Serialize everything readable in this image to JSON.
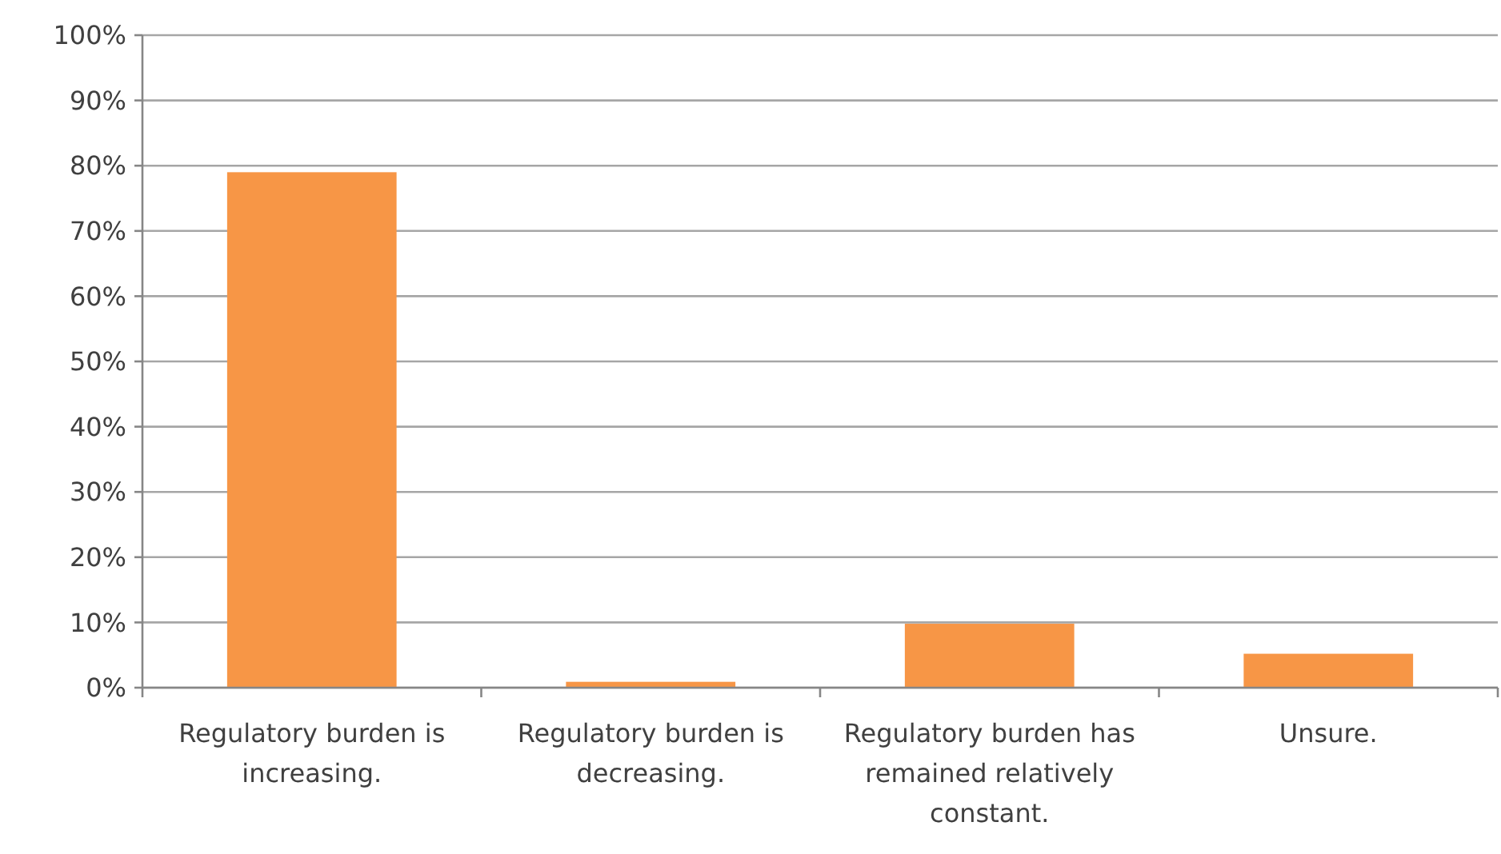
{
  "chart_data": {
    "type": "bar",
    "categories": [
      "Regulatory burden is increasing.",
      "Regulatory burden is decreasing.",
      "Regulatory burden has remained relatively constant.",
      "Unsure."
    ],
    "values": [
      79,
      0.9,
      9.8,
      5.2
    ],
    "color": "#f79646",
    "ylim": [
      0,
      100
    ],
    "yticks": [
      {
        "value": 0,
        "label": "0%"
      },
      {
        "value": 10,
        "label": "10%"
      },
      {
        "value": 20,
        "label": "20%"
      },
      {
        "value": 30,
        "label": "30%"
      },
      {
        "value": 40,
        "label": "40%"
      },
      {
        "value": 50,
        "label": "50%"
      },
      {
        "value": 60,
        "label": "60%"
      },
      {
        "value": 70,
        "label": "70%"
      },
      {
        "value": 80,
        "label": "80%"
      },
      {
        "value": 90,
        "label": "90%"
      },
      {
        "value": 100,
        "label": "100%"
      }
    ],
    "grid": "y"
  }
}
